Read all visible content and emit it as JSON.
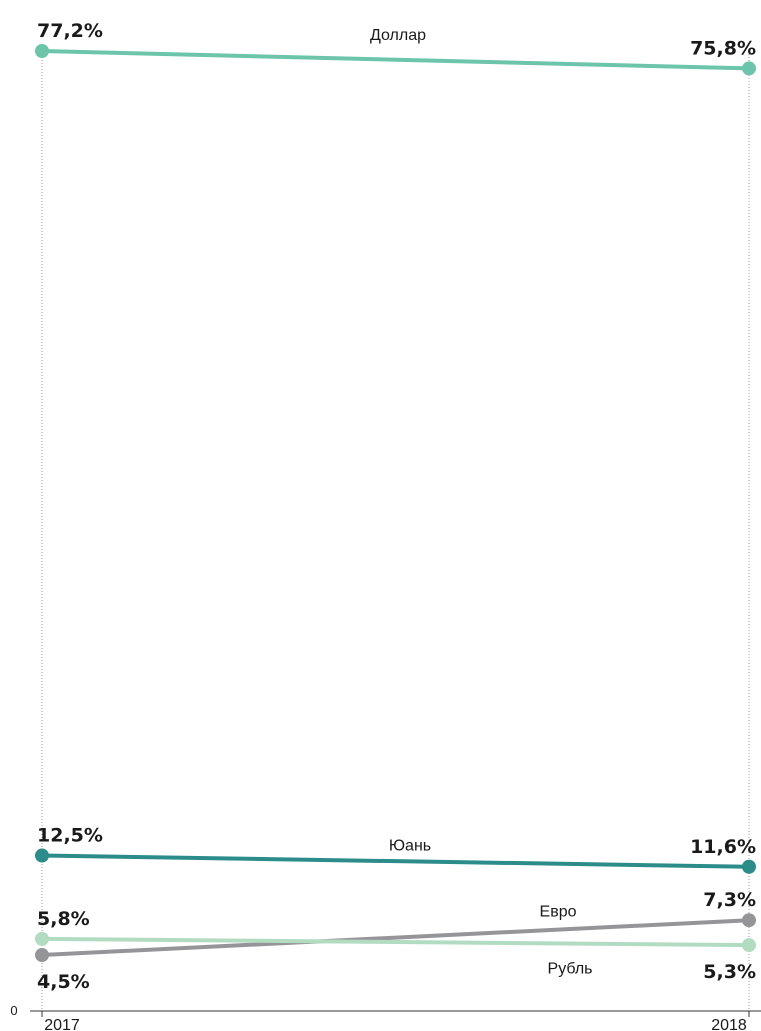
{
  "chart_data": {
    "type": "line",
    "x": [
      "2017",
      "2018"
    ],
    "ylim": [
      0,
      77.2
    ],
    "y_zero_label": "0",
    "grid": false,
    "series": [
      {
        "name": "Доллар",
        "values": [
          77.2,
          75.8
        ],
        "value_labels": [
          "77,2%",
          "75,8%"
        ],
        "color": "#6cc5aa"
      },
      {
        "name": "Юань",
        "values": [
          12.5,
          11.6
        ],
        "value_labels": [
          "12,5%",
          "11,6%"
        ],
        "color": "#2b8c8a"
      },
      {
        "name": "Евро",
        "values": [
          4.5,
          7.3
        ],
        "value_labels": [
          "4,5%",
          "7,3%"
        ],
        "color": "#959598"
      },
      {
        "name": "Рубль",
        "values": [
          5.8,
          5.3
        ],
        "value_labels": [
          "5,8%",
          "5,3%"
        ],
        "color": "#b2dcc1"
      }
    ]
  }
}
